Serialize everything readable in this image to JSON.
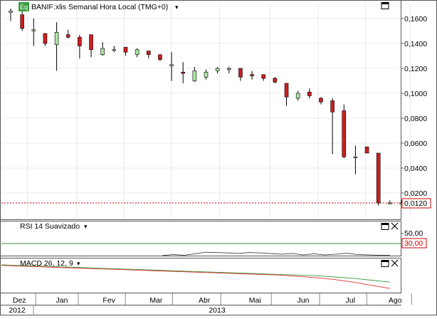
{
  "header": {
    "eq_badge": "Eq",
    "title": "BANIF:xlis Semanal Hora Local (TMG+0)",
    "title_arrow": "▾"
  },
  "price_panel": {
    "y_ticks": [
      "0,1600",
      "0,1400",
      "0,1200",
      "0,1000",
      "0,0800",
      "0,0600",
      "0,0400",
      "0,0200"
    ],
    "current_price_label": "0,0120",
    "current_price": 0.012
  },
  "rsi_panel": {
    "title": "RSI 14 Suavizado",
    "title_arrow": "▾",
    "y_tick": "50,00",
    "level_label": "30,00",
    "level": 30,
    "values": [
      21,
      24,
      22,
      26,
      31,
      30,
      29,
      27,
      30,
      29,
      27,
      25,
      27,
      23,
      26,
      23,
      25,
      28,
      24,
      23,
      22,
      22
    ]
  },
  "macd_panel": {
    "title": "MACD 26, 12, 9",
    "title_arrow": "▾",
    "macd_values": [
      0.018,
      0.017,
      0.016,
      0.015,
      0.014,
      0.013,
      0.012,
      0.011,
      0.01,
      0.009,
      0.008,
      0.007,
      0.006,
      0.005,
      0.004,
      0.003,
      0.001,
      -0.001,
      -0.004,
      -0.008,
      -0.013,
      -0.018
    ],
    "signal_values": [
      0.019,
      0.018,
      0.017,
      0.016,
      0.015,
      0.014,
      0.013,
      0.012,
      0.011,
      0.01,
      0.009,
      0.008,
      0.007,
      0.006,
      0.005,
      0.004,
      0.003,
      0.002,
      0.0,
      -0.002,
      -0.005,
      -0.008
    ]
  },
  "x_axis": {
    "months": [
      "Dez",
      "Jan",
      "Fev",
      "Mar",
      "Abr",
      "Mai",
      "Jun",
      "Jul",
      "Ago"
    ],
    "years": [
      "2012",
      "2013"
    ]
  },
  "colors": {
    "up_candle": "#a8e6a0",
    "down_candle": "#cc1f1f",
    "price_line": "#cc0000",
    "rsi_level": "#3a8a3a",
    "macd": "#e03030",
    "signal": "#3a9a3a",
    "eq_badge": "#3aa040"
  },
  "chart_data": {
    "type": "candlestick",
    "title": "BANIF:xlis Semanal Hora Local (TMG+0)",
    "ylim": [
      0.0,
      0.172
    ],
    "x_labels": [
      "Dez",
      "Jan",
      "Fev",
      "Mar",
      "Abr",
      "Mai",
      "Jun",
      "Jul",
      "Ago"
    ],
    "candles": [
      {
        "o": 0.165,
        "h": 0.168,
        "l": 0.158,
        "c": 0.166
      },
      {
        "o": 0.163,
        "h": 0.167,
        "l": 0.15,
        "c": 0.152
      },
      {
        "o": 0.15,
        "h": 0.16,
        "l": 0.138,
        "c": 0.151
      },
      {
        "o": 0.148,
        "h": 0.148,
        "l": 0.138,
        "c": 0.14
      },
      {
        "o": 0.139,
        "h": 0.157,
        "l": 0.118,
        "c": 0.149
      },
      {
        "o": 0.147,
        "h": 0.151,
        "l": 0.144,
        "c": 0.145
      },
      {
        "o": 0.145,
        "h": 0.147,
        "l": 0.128,
        "c": 0.138
      },
      {
        "o": 0.147,
        "h": 0.147,
        "l": 0.129,
        "c": 0.135
      },
      {
        "o": 0.131,
        "h": 0.141,
        "l": 0.13,
        "c": 0.136
      },
      {
        "o": 0.135,
        "h": 0.138,
        "l": 0.133,
        "c": 0.135
      },
      {
        "o": 0.137,
        "h": 0.137,
        "l": 0.13,
        "c": 0.133
      },
      {
        "o": 0.131,
        "h": 0.136,
        "l": 0.129,
        "c": 0.135
      },
      {
        "o": 0.134,
        "h": 0.134,
        "l": 0.128,
        "c": 0.131
      },
      {
        "o": 0.131,
        "h": 0.131,
        "l": 0.126,
        "c": 0.127
      },
      {
        "o": 0.122,
        "h": 0.133,
        "l": 0.11,
        "c": 0.123
      },
      {
        "o": 0.117,
        "h": 0.125,
        "l": 0.108,
        "c": 0.116
      },
      {
        "o": 0.11,
        "h": 0.121,
        "l": 0.109,
        "c": 0.118
      },
      {
        "o": 0.113,
        "h": 0.119,
        "l": 0.111,
        "c": 0.117
      },
      {
        "o": 0.118,
        "h": 0.121,
        "l": 0.116,
        "c": 0.12
      },
      {
        "o": 0.119,
        "h": 0.121,
        "l": 0.116,
        "c": 0.12
      },
      {
        "o": 0.12,
        "h": 0.12,
        "l": 0.11,
        "c": 0.113
      },
      {
        "o": 0.115,
        "h": 0.118,
        "l": 0.111,
        "c": 0.114
      },
      {
        "o": 0.115,
        "h": 0.115,
        "l": 0.11,
        "c": 0.112
      },
      {
        "o": 0.112,
        "h": 0.113,
        "l": 0.108,
        "c": 0.109
      },
      {
        "o": 0.108,
        "h": 0.108,
        "l": 0.09,
        "c": 0.097
      },
      {
        "o": 0.096,
        "h": 0.102,
        "l": 0.094,
        "c": 0.1
      },
      {
        "o": 0.101,
        "h": 0.104,
        "l": 0.096,
        "c": 0.098
      },
      {
        "o": 0.096,
        "h": 0.097,
        "l": 0.091,
        "c": 0.093
      },
      {
        "o": 0.094,
        "h": 0.096,
        "l": 0.051,
        "c": 0.085
      },
      {
        "o": 0.086,
        "h": 0.091,
        "l": 0.048,
        "c": 0.049
      },
      {
        "o": 0.049,
        "h": 0.058,
        "l": 0.035,
        "c": 0.049
      },
      {
        "o": 0.057,
        "h": 0.057,
        "l": 0.052,
        "c": 0.052
      },
      {
        "o": 0.052,
        "h": 0.052,
        "l": 0.01,
        "c": 0.012
      },
      {
        "o": 0.012,
        "h": 0.014,
        "l": 0.011,
        "c": 0.012
      },
      {
        "o": 0.012,
        "h": 0.014,
        "l": 0.011,
        "c": 0.012
      }
    ]
  }
}
